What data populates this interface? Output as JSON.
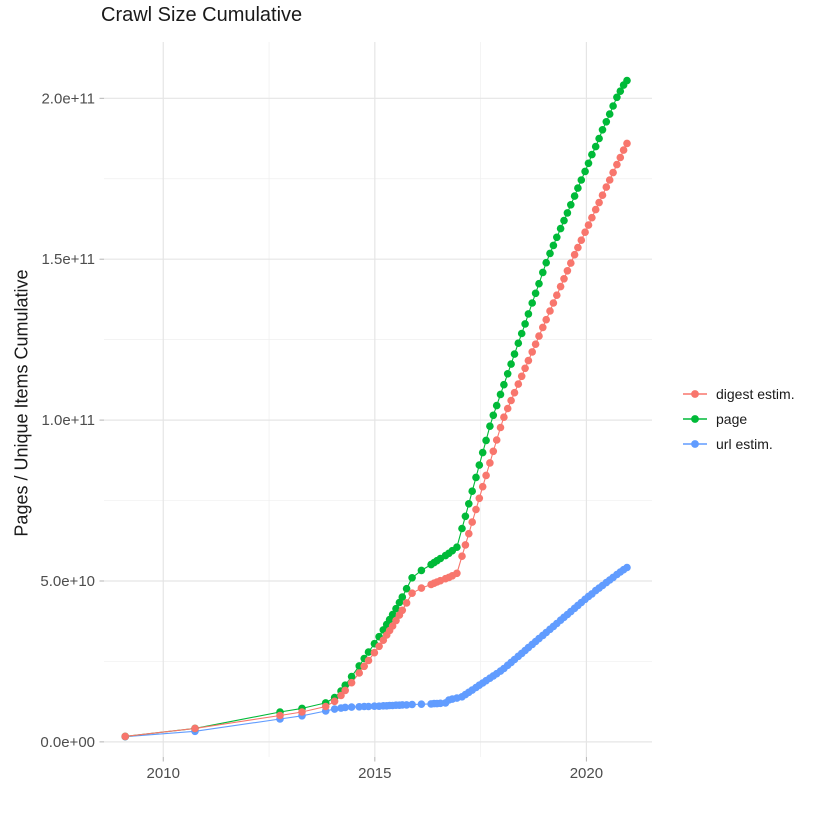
{
  "chart_data": {
    "type": "scatter",
    "title": "Crawl Size Cumulative",
    "xlabel": "",
    "ylabel": "Pages / Unique Items Cumulative",
    "values_unit": "1e9 (billions, cumulative)",
    "grid": true,
    "legend_position": "right",
    "xlim": [
      2008.6,
      2021.55
    ],
    "ylim": [
      -4.7,
      217.5
    ],
    "x_axis": {
      "tick_values": [
        2010,
        2015,
        2020
      ],
      "tick_labels": [
        "2010",
        "2015",
        "2020"
      ],
      "minor": [
        2012.5,
        2017.5
      ]
    },
    "y_axis": {
      "tick_values": [
        0,
        50,
        100,
        150,
        200
      ],
      "tick_labels": [
        "0.0e+00",
        "5.0e+10",
        "1.0e+11",
        "1.5e+11",
        "2.0e+11"
      ],
      "minor": [
        25,
        75,
        125,
        175
      ]
    },
    "x": [
      2009.1,
      2010.75,
      2012.76,
      2013.28,
      2013.84,
      2014.05,
      2014.2,
      2014.3,
      2014.45,
      2014.63,
      2014.75,
      2014.85,
      2014.99,
      2015.1,
      2015.2,
      2015.28,
      2015.35,
      2015.42,
      2015.5,
      2015.58,
      2015.65,
      2015.75,
      2015.88,
      2016.1,
      2016.33,
      2016.4,
      2016.47,
      2016.55,
      2016.67,
      2016.75,
      2016.83,
      2016.94,
      2017.06,
      2017.14,
      2017.22,
      2017.3,
      2017.39,
      2017.47,
      2017.55,
      2017.63,
      2017.72,
      2017.8,
      2017.88,
      2017.97,
      2018.05,
      2018.14,
      2018.22,
      2018.3,
      2018.39,
      2018.47,
      2018.55,
      2018.63,
      2018.72,
      2018.8,
      2018.88,
      2018.97,
      2019.05,
      2019.14,
      2019.22,
      2019.3,
      2019.39,
      2019.47,
      2019.55,
      2019.63,
      2019.72,
      2019.8,
      2019.88,
      2019.97,
      2020.05,
      2020.13,
      2020.22,
      2020.3,
      2020.38,
      2020.47,
      2020.55,
      2020.63,
      2020.72,
      2020.8,
      2020.88,
      2020.96
    ],
    "series": [
      {
        "label": "digest estim.",
        "color": "#F8766D",
        "values": [
          1.7,
          4.2,
          8.2,
          9.3,
          11.0,
          12.6,
          14.4,
          16.0,
          18.4,
          21.4,
          23.5,
          25.3,
          27.7,
          29.7,
          31.6,
          33.2,
          34.6,
          36.0,
          37.7,
          39.4,
          40.9,
          43.2,
          46.2,
          47.8,
          48.9,
          49.3,
          49.7,
          50.1,
          50.7,
          51.1,
          51.6,
          52.4,
          57.7,
          61.2,
          64.7,
          68.3,
          72.2,
          75.7,
          79.3,
          82.8,
          86.7,
          90.3,
          93.8,
          97.7,
          100.9,
          103.6,
          106.1,
          108.5,
          111.2,
          113.6,
          116.1,
          118.5,
          121.2,
          123.6,
          126.1,
          128.8,
          131.2,
          133.9,
          136.4,
          138.8,
          141.5,
          143.9,
          146.4,
          148.8,
          151.4,
          153.6,
          155.9,
          158.4,
          160.6,
          162.9,
          165.4,
          167.6,
          169.9,
          172.4,
          174.6,
          176.9,
          179.4,
          181.6,
          183.9,
          186.0
        ]
      },
      {
        "label": "page",
        "color": "#00BA38",
        "values": [
          1.7,
          4.2,
          9.3,
          10.4,
          12.1,
          13.8,
          15.8,
          17.6,
          20.3,
          23.6,
          25.9,
          27.9,
          30.5,
          32.7,
          34.8,
          36.5,
          38.0,
          39.6,
          41.4,
          43.3,
          45.0,
          47.6,
          51.0,
          53.3,
          55.1,
          55.7,
          56.3,
          57.0,
          57.9,
          58.6,
          59.4,
          60.5,
          66.3,
          70.1,
          74.0,
          77.9,
          82.2,
          86.0,
          89.9,
          93.7,
          98.1,
          101.5,
          104.5,
          108.0,
          111.0,
          114.4,
          117.4,
          120.5,
          123.9,
          126.9,
          129.9,
          133.0,
          136.4,
          139.4,
          142.4,
          145.9,
          148.9,
          151.8,
          154.3,
          156.8,
          159.5,
          162.0,
          164.4,
          166.9,
          169.6,
          172.1,
          174.6,
          177.3,
          179.8,
          182.5,
          185.0,
          187.5,
          190.2,
          192.7,
          195.1,
          197.6,
          200.3,
          202.2,
          204.1,
          205.5
        ]
      },
      {
        "label": "url estim.",
        "color": "#619CFF",
        "values": [
          1.6,
          3.3,
          7.1,
          8.1,
          9.6,
          10.2,
          10.5,
          10.7,
          10.8,
          10.9,
          11.0,
          11.0,
          11.1,
          11.1,
          11.2,
          11.2,
          11.3,
          11.3,
          11.4,
          11.4,
          11.5,
          11.5,
          11.6,
          11.7,
          11.8,
          11.9,
          11.9,
          12.0,
          12.1,
          13.0,
          13.3,
          13.6,
          14.0,
          14.7,
          15.4,
          16.1,
          16.9,
          17.6,
          18.3,
          19.0,
          19.8,
          20.5,
          21.2,
          22.0,
          22.8,
          23.8,
          24.7,
          25.6,
          26.6,
          27.5,
          28.4,
          29.3,
          30.3,
          31.2,
          32.1,
          33.1,
          34.0,
          35.0,
          35.9,
          36.8,
          37.8,
          38.7,
          39.6,
          40.5,
          41.5,
          42.4,
          43.3,
          44.3,
          45.2,
          46.0,
          47.0,
          47.8,
          48.6,
          49.5,
          50.3,
          51.1,
          52.0,
          52.8,
          53.5,
          54.2
        ]
      }
    ],
    "style": {
      "background": "#FFFFFF",
      "grid_major_color": "#E5E5E5",
      "grid_minor_color": "#EFEFEF",
      "tick_mark_color": "#B3B3B3",
      "axis_text_color": "#4D4D4D",
      "text_color": "#1A1A1A"
    }
  }
}
